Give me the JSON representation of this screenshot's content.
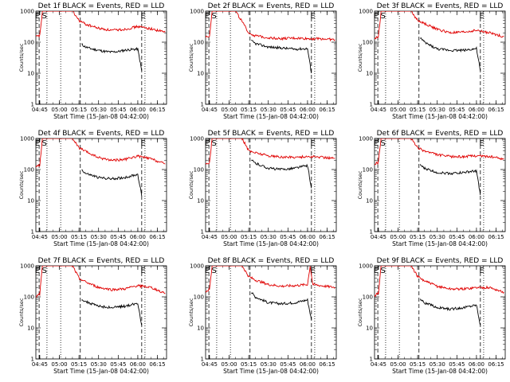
{
  "chart_data": [
    {
      "type": "line",
      "title": "Det 1f BLACK = Events, RED = LLD",
      "xlabel": "Start Time (15-Jan-08 04:42:00)",
      "ylabel": "Counts/sec",
      "yscale": "log",
      "ylim": [
        1,
        1000
      ],
      "yticks": [
        "1",
        "10",
        "100",
        "1000"
      ],
      "xlim": [
        "04:42",
        "06:22"
      ],
      "xticks": [
        "04:45",
        "05:00",
        "05:15",
        "05:30",
        "05:45",
        "06:00",
        "06:15"
      ],
      "event_markers": [
        "E",
        "S",
        "E"
      ],
      "series": [
        {
          "name": "BLACK = Events",
          "color": "#000000",
          "x": [
            "05:17",
            "05:20",
            "05:25",
            "05:30",
            "05:35",
            "05:40",
            "05:45",
            "05:50",
            "05:55",
            "06:00",
            "06:03"
          ],
          "y": [
            85,
            70,
            60,
            55,
            50,
            48,
            50,
            55,
            58,
            60,
            12
          ]
        },
        {
          "name": "RED = LLD",
          "color": "#e00000",
          "x": [
            "04:42",
            "04:45",
            "04:47",
            "04:49",
            "05:10",
            "05:15",
            "05:20",
            "05:30",
            "05:40",
            "05:50",
            "06:00",
            "06:10",
            "06:21"
          ],
          "y": [
            150,
            160,
            1000,
            1000,
            1000,
            500,
            380,
            280,
            240,
            260,
            320,
            270,
            210
          ]
        }
      ]
    },
    {
      "type": "line",
      "title": "Det 2f BLACK = Events, RED = LLD",
      "xlabel": "Start Time (15-Jan-08 04:42:00)",
      "ylabel": "Counts/sec",
      "yscale": "log",
      "ylim": [
        1,
        1000
      ],
      "yticks": [
        "1",
        "10",
        "100",
        "1000"
      ],
      "xlim": [
        "04:42",
        "06:22"
      ],
      "xticks": [
        "04:45",
        "05:00",
        "05:15",
        "05:30",
        "05:45",
        "06:00",
        "06:15"
      ],
      "event_markers": [
        "E",
        "S",
        "E"
      ],
      "series": [
        {
          "name": "BLACK = Events",
          "color": "#000000",
          "x": [
            "05:17",
            "05:20",
            "05:30",
            "05:40",
            "05:50",
            "06:00",
            "06:03"
          ],
          "y": [
            110,
            90,
            70,
            65,
            60,
            62,
            10
          ]
        },
        {
          "name": "RED = LLD",
          "color": "#e00000",
          "x": [
            "04:42",
            "04:45",
            "04:47",
            "04:50",
            "05:05",
            "05:15",
            "05:20",
            "05:30",
            "05:40",
            "05:50",
            "06:00",
            "06:10",
            "06:21"
          ],
          "y": [
            150,
            160,
            1000,
            1000,
            1000,
            200,
            160,
            140,
            130,
            135,
            130,
            130,
            120
          ]
        }
      ]
    },
    {
      "type": "line",
      "title": "Det 3f BLACK = Events, RED = LLD",
      "xlabel": "Start Time (15-Jan-08 04:42:00)",
      "ylabel": "Counts/sec",
      "yscale": "log",
      "ylim": [
        1,
        1000
      ],
      "yticks": [
        "1",
        "10",
        "100",
        "1000"
      ],
      "xlim": [
        "04:42",
        "06:22"
      ],
      "xticks": [
        "04:45",
        "05:00",
        "05:15",
        "05:30",
        "05:45",
        "06:00",
        "06:15"
      ],
      "event_markers": [
        "E",
        "S",
        "E"
      ],
      "series": [
        {
          "name": "BLACK = Events",
          "color": "#000000",
          "x": [
            "05:17",
            "05:20",
            "05:30",
            "05:40",
            "05:50",
            "06:00",
            "06:03"
          ],
          "y": [
            140,
            100,
            60,
            55,
            55,
            62,
            12
          ]
        },
        {
          "name": "RED = LLD",
          "color": "#e00000",
          "x": [
            "04:42",
            "04:45",
            "04:47",
            "04:50",
            "05:10",
            "05:15",
            "05:20",
            "05:30",
            "05:40",
            "05:50",
            "06:00",
            "06:10",
            "06:21"
          ],
          "y": [
            130,
            150,
            1000,
            1000,
            1000,
            500,
            400,
            260,
            200,
            210,
            240,
            200,
            150
          ]
        }
      ]
    },
    {
      "type": "line",
      "title": "Det 4f BLACK = Events, RED = LLD",
      "xlabel": "Start Time (15-Jan-08 04:42:00)",
      "ylabel": "Counts/sec",
      "yscale": "log",
      "ylim": [
        1,
        1000
      ],
      "yticks": [
        "1",
        "10",
        "100",
        "1000"
      ],
      "xlim": [
        "04:42",
        "06:22"
      ],
      "xticks": [
        "04:45",
        "05:00",
        "05:15",
        "05:30",
        "05:45",
        "06:00",
        "06:15"
      ],
      "event_markers": [
        "E",
        "S",
        "E"
      ],
      "series": [
        {
          "name": "BLACK = Events",
          "color": "#000000",
          "x": [
            "05:17",
            "05:20",
            "05:30",
            "05:40",
            "05:50",
            "06:00",
            "06:03"
          ],
          "y": [
            100,
            75,
            55,
            50,
            55,
            70,
            14
          ]
        },
        {
          "name": "RED = LLD",
          "color": "#e00000",
          "x": [
            "04:42",
            "04:45",
            "04:47",
            "04:50",
            "05:10",
            "05:15",
            "05:20",
            "05:30",
            "05:40",
            "05:50",
            "06:00",
            "06:10",
            "06:21"
          ],
          "y": [
            120,
            140,
            1000,
            1000,
            1000,
            500,
            380,
            240,
            200,
            210,
            270,
            220,
            150
          ]
        }
      ]
    },
    {
      "type": "line",
      "title": "Det 5f BLACK = Events, RED = LLD",
      "xlabel": "Start Time (15-Jan-08 04:42:00)",
      "ylabel": "Counts/sec",
      "yscale": "log",
      "ylim": [
        1,
        1000
      ],
      "yticks": [
        "1",
        "10",
        "100",
        "1000"
      ],
      "xlim": [
        "04:42",
        "06:22"
      ],
      "xticks": [
        "04:45",
        "05:00",
        "05:15",
        "05:30",
        "05:45",
        "06:00",
        "06:15"
      ],
      "event_markers": [
        "E",
        "S",
        "E"
      ],
      "series": [
        {
          "name": "BLACK = Events",
          "color": "#000000",
          "x": [
            "05:17",
            "05:20",
            "05:30",
            "05:40",
            "05:50",
            "06:00",
            "06:03"
          ],
          "y": [
            200,
            160,
            110,
            100,
            110,
            135,
            25
          ]
        },
        {
          "name": "RED = LLD",
          "color": "#e00000",
          "x": [
            "04:42",
            "04:45",
            "04:47",
            "04:50",
            "05:10",
            "05:15",
            "05:20",
            "05:30",
            "05:40",
            "05:50",
            "06:00",
            "06:10",
            "06:21"
          ],
          "y": [
            150,
            170,
            1000,
            1000,
            1000,
            400,
            350,
            280,
            250,
            250,
            260,
            250,
            230
          ]
        }
      ]
    },
    {
      "type": "line",
      "title": "Det 6f BLACK = Events, RED = LLD",
      "xlabel": "Start Time (15-Jan-08 04:42:00)",
      "ylabel": "Counts/sec",
      "yscale": "log",
      "ylim": [
        1,
        1000
      ],
      "yticks": [
        "1",
        "10",
        "100",
        "1000"
      ],
      "xlim": [
        "04:42",
        "06:22"
      ],
      "xticks": [
        "04:45",
        "05:00",
        "05:15",
        "05:30",
        "05:45",
        "06:00",
        "06:15"
      ],
      "event_markers": [
        "E",
        "S",
        "E"
      ],
      "series": [
        {
          "name": "BLACK = Events",
          "color": "#000000",
          "x": [
            "05:17",
            "05:20",
            "05:30",
            "05:40",
            "05:50",
            "06:00",
            "06:03"
          ],
          "y": [
            140,
            110,
            80,
            75,
            80,
            90,
            15
          ]
        },
        {
          "name": "RED = LLD",
          "color": "#e00000",
          "x": [
            "04:42",
            "04:45",
            "04:47",
            "04:50",
            "05:10",
            "05:15",
            "05:20",
            "05:30",
            "05:40",
            "05:50",
            "06:00",
            "06:10",
            "06:21"
          ],
          "y": [
            150,
            170,
            1000,
            1000,
            1000,
            500,
            400,
            300,
            260,
            260,
            280,
            260,
            220
          ]
        }
      ]
    },
    {
      "type": "line",
      "title": "Det 7f BLACK = Events, RED = LLD",
      "xlabel": "Start Time (15-Jan-08 04:42:00)",
      "ylabel": "Counts/sec",
      "yscale": "log",
      "ylim": [
        1,
        1000
      ],
      "yticks": [
        "1",
        "10",
        "100",
        "1000"
      ],
      "xlim": [
        "04:42",
        "06:22"
      ],
      "xticks": [
        "04:45",
        "05:00",
        "05:15",
        "05:30",
        "05:45",
        "06:00",
        "06:15"
      ],
      "event_markers": [
        "E",
        "S",
        "E"
      ],
      "series": [
        {
          "name": "BLACK = Events",
          "color": "#000000",
          "x": [
            "05:17",
            "05:20",
            "05:30",
            "05:40",
            "05:50",
            "06:00",
            "06:03"
          ],
          "y": [
            85,
            70,
            50,
            45,
            50,
            62,
            12
          ]
        },
        {
          "name": "RED = LLD",
          "color": "#e00000",
          "x": [
            "04:42",
            "04:45",
            "04:47",
            "04:50",
            "05:10",
            "05:15",
            "05:20",
            "05:30",
            "05:40",
            "05:50",
            "06:00",
            "06:10",
            "06:21"
          ],
          "y": [
            100,
            120,
            1000,
            1000,
            1000,
            400,
            300,
            200,
            170,
            180,
            230,
            200,
            130
          ]
        }
      ]
    },
    {
      "type": "line",
      "title": "Det 8f BLACK = Events, RED = LLD",
      "xlabel": "Start Time (15-Jan-08 04:42:00)",
      "ylabel": "Counts/sec",
      "yscale": "log",
      "ylim": [
        1,
        1000
      ],
      "yticks": [
        "1",
        "10",
        "100",
        "1000"
      ],
      "xlim": [
        "04:42",
        "06:22"
      ],
      "xticks": [
        "04:45",
        "05:00",
        "05:15",
        "05:30",
        "05:45",
        "06:00",
        "06:15"
      ],
      "event_markers": [
        "E",
        "S",
        "E"
      ],
      "series": [
        {
          "name": "BLACK = Events",
          "color": "#000000",
          "x": [
            "05:17",
            "05:20",
            "05:30",
            "05:40",
            "05:50",
            "06:00",
            "06:03"
          ],
          "y": [
            140,
            100,
            65,
            60,
            65,
            80,
            18
          ]
        },
        {
          "name": "RED = LLD",
          "color": "#e00000",
          "x": [
            "04:42",
            "04:45",
            "04:47",
            "04:50",
            "05:10",
            "05:15",
            "05:20",
            "05:30",
            "05:40",
            "05:50",
            "06:00",
            "06:02",
            "06:04",
            "06:10",
            "06:21"
          ],
          "y": [
            150,
            170,
            1000,
            1000,
            1000,
            450,
            350,
            250,
            220,
            230,
            250,
            1000,
            250,
            230,
            200
          ]
        }
      ]
    },
    {
      "type": "line",
      "title": "Det 9f BLACK = Events, RED = LLD",
      "xlabel": "Start Time (15-Jan-08 04:42:00)",
      "ylabel": "Counts/sec",
      "yscale": "log",
      "ylim": [
        1,
        1000
      ],
      "yticks": [
        "1",
        "10",
        "100",
        "1000"
      ],
      "xlim": [
        "04:42",
        "06:22"
      ],
      "xticks": [
        "04:45",
        "05:00",
        "05:15",
        "05:30",
        "05:45",
        "06:00",
        "06:15"
      ],
      "event_markers": [
        "E",
        "S",
        "E"
      ],
      "series": [
        {
          "name": "BLACK = Events",
          "color": "#000000",
          "x": [
            "05:17",
            "05:20",
            "05:30",
            "05:40",
            "05:50",
            "06:00",
            "06:03"
          ],
          "y": [
            85,
            65,
            45,
            40,
            45,
            55,
            12
          ]
        },
        {
          "name": "RED = LLD",
          "color": "#e00000",
          "x": [
            "04:42",
            "04:45",
            "04:47",
            "04:50",
            "05:10",
            "05:15",
            "05:20",
            "05:30",
            "05:40",
            "05:50",
            "06:00",
            "06:10",
            "06:21"
          ],
          "y": [
            110,
            130,
            1000,
            1000,
            1000,
            450,
            330,
            220,
            180,
            180,
            200,
            200,
            140
          ]
        }
      ]
    }
  ]
}
